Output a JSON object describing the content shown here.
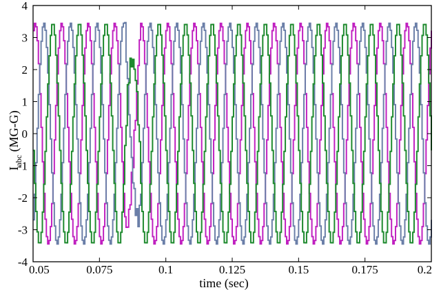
{
  "chart_data": {
    "type": "line",
    "title": "",
    "xlabel": "time (sec)",
    "ylabel": {
      "main": "I",
      "sub": "abc",
      "suffix": " (MG-G)"
    },
    "xlim": [
      0.05,
      0.2
    ],
    "ylim": [
      -4,
      4
    ],
    "xticks": [
      0.05,
      0.075,
      0.1,
      0.125,
      0.15,
      0.175,
      0.2
    ],
    "xtick_labels": [
      "0.05",
      "0.075",
      "0.1",
      "0.125",
      "0.15",
      "0.175",
      "0.2"
    ],
    "yticks": [
      -4,
      -3,
      -2,
      -1,
      0,
      1,
      2,
      3,
      4
    ],
    "ytick_labels": [
      "-4",
      "-3",
      "-2",
      "-1",
      "0",
      "1",
      "2",
      "3",
      "4"
    ],
    "grid": false,
    "legend": "none",
    "waveform": {
      "amplitude": 3.45,
      "frequency_hz": 100,
      "step_sec": 0.0005,
      "disturbance_interval_sec": [
        0.0845,
        0.0905
      ]
    },
    "series": [
      {
        "color": "#c020c0",
        "phase_deg": 0
      },
      {
        "color": "#6b7fa8",
        "phase_deg": -120
      },
      {
        "color": "#1e8a2e",
        "phase_deg": 120
      }
    ]
  }
}
